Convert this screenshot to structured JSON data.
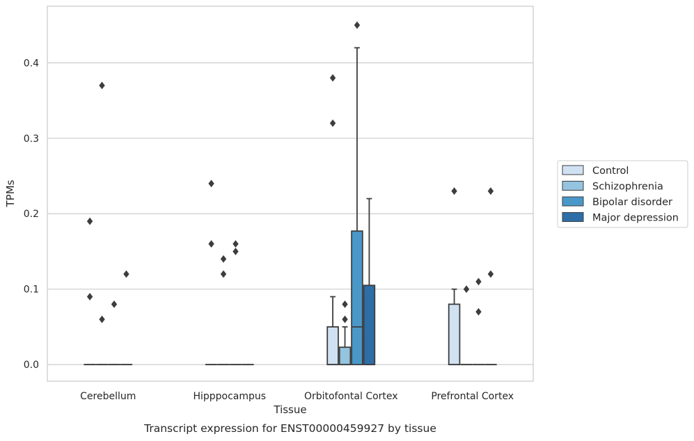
{
  "chart_data": {
    "type": "box",
    "caption": "Transcript expression for ENST00000459927 by tissue",
    "xlabel": "Tissue",
    "ylabel": "TPMs",
    "ylim": [
      -0.022,
      0.475
    ],
    "yticks": [
      0.0,
      0.1,
      0.2,
      0.3,
      0.4
    ],
    "ytick_labels": [
      "0.0",
      "0.1",
      "0.2",
      "0.3",
      "0.4"
    ],
    "grid": "horizontal",
    "legend_position": "right",
    "categories": [
      "Cerebellum",
      "Hipppocampus",
      "Orbitofontal Cortex",
      "Prefrontal Cortex"
    ],
    "series": [
      {
        "name": "Control",
        "color": "#d0e1f2",
        "boxes": [
          {
            "q1": 0,
            "median": 0,
            "q3": 0,
            "whislo": 0,
            "whishi": 0,
            "fliers": [
              0.19,
              0.09
            ]
          },
          {
            "q1": 0,
            "median": 0,
            "q3": 0,
            "whislo": 0,
            "whishi": 0,
            "fliers": [
              0.24,
              0.16
            ]
          },
          {
            "q1": 0,
            "median": 0,
            "q3": 0.05,
            "whislo": 0,
            "whishi": 0.09,
            "fliers": [
              0.38,
              0.32
            ]
          },
          {
            "q1": 0,
            "median": 0,
            "q3": 0.08,
            "whislo": 0,
            "whishi": 0.1,
            "fliers": [
              0.23
            ]
          }
        ]
      },
      {
        "name": "Schizophrenia",
        "color": "#94c4df",
        "boxes": [
          {
            "q1": 0,
            "median": 0,
            "q3": 0,
            "whislo": 0,
            "whishi": 0,
            "fliers": [
              0.06,
              0.37
            ]
          },
          {
            "q1": 0,
            "median": 0,
            "q3": 0,
            "whislo": 0,
            "whishi": 0,
            "fliers": [
              0.14,
              0.12
            ]
          },
          {
            "q1": 0,
            "median": 0,
            "q3": 0.023,
            "whislo": 0,
            "whishi": 0.05,
            "fliers": [
              0.08,
              0.06
            ]
          },
          {
            "q1": 0,
            "median": 0,
            "q3": 0,
            "whislo": 0,
            "whishi": 0,
            "fliers": [
              0.1
            ]
          }
        ]
      },
      {
        "name": "Bipolar disorder",
        "color": "#4a98c9",
        "boxes": [
          {
            "q1": 0,
            "median": 0,
            "q3": 0,
            "whislo": 0,
            "whishi": 0,
            "fliers": [
              0.08
            ]
          },
          {
            "q1": 0,
            "median": 0,
            "q3": 0,
            "whislo": 0,
            "whishi": 0,
            "fliers": [
              0.16,
              0.15
            ]
          },
          {
            "q1": 0,
            "median": 0.05,
            "q3": 0.177,
            "whislo": 0,
            "whishi": 0.42,
            "fliers": [
              0.45
            ]
          },
          {
            "q1": 0,
            "median": 0,
            "q3": 0,
            "whislo": 0,
            "whishi": 0,
            "fliers": [
              0.11,
              0.07
            ]
          }
        ]
      },
      {
        "name": "Major depression",
        "color": "#2e6ea7",
        "boxes": [
          {
            "q1": 0,
            "median": 0,
            "q3": 0,
            "whislo": 0,
            "whishi": 0,
            "fliers": [
              0.12
            ]
          },
          {
            "q1": 0,
            "median": 0,
            "q3": 0,
            "whislo": 0,
            "whishi": 0,
            "fliers": []
          },
          {
            "q1": 0,
            "median": 0,
            "q3": 0.105,
            "whislo": 0,
            "whishi": 0.22,
            "fliers": []
          },
          {
            "q1": 0,
            "median": 0,
            "q3": 0,
            "whislo": 0,
            "whishi": 0,
            "fliers": [
              0.23,
              0.12
            ]
          }
        ]
      }
    ]
  }
}
